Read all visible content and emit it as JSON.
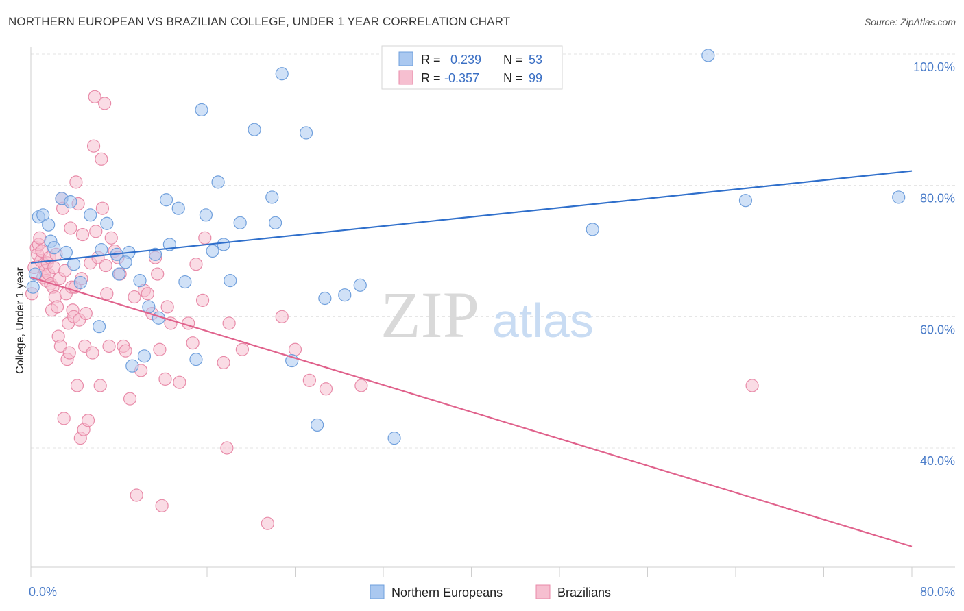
{
  "title": "NORTHERN EUROPEAN VS BRAZILIAN COLLEGE, UNDER 1 YEAR CORRELATION CHART",
  "source": "Source: ZipAtlas.com",
  "watermark": {
    "zip": "ZIP",
    "atlas": "atlas"
  },
  "legend_top": {
    "rows": [
      {
        "r_label": "R =",
        "r_value": "0.239",
        "n_label": "N =",
        "n_value": "53"
      },
      {
        "r_label": "R =",
        "r_value": "-0.357",
        "n_label": "N =",
        "n_value": "99"
      }
    ]
  },
  "legend_bottom": [
    "Northern Europeans",
    "Brazilians"
  ],
  "colors": {
    "blue_fill": "#aac8f0",
    "blue_stroke": "#6f9fdc",
    "blue_line": "#2f6fcb",
    "pink_fill": "#f6bfd0",
    "pink_stroke": "#e88aa8",
    "pink_line": "#e0628c",
    "grid": "#e3e3e3",
    "tick_text": "#4a7cc9"
  },
  "chart_data": {
    "type": "scatter",
    "title": "NORTHERN EUROPEAN VS BRAZILIAN COLLEGE, UNDER 1 YEAR CORRELATION CHART",
    "xlabel": "",
    "ylabel": "College, Under 1 year",
    "xlim": [
      0,
      80
    ],
    "ylim": [
      21,
      101
    ],
    "x_tick_labels": [
      "0.0%",
      "80.0%"
    ],
    "y_ticks": [
      40,
      60,
      80,
      100
    ],
    "y_tick_labels": [
      "40.0%",
      "60.0%",
      "80.0%",
      "100.0%"
    ],
    "grid": true,
    "legend_placement": "top-center",
    "series": [
      {
        "name": "Northern Europeans",
        "r": 0.239,
        "n": 53,
        "trend": {
          "x": [
            0,
            80
          ],
          "y": [
            68.2,
            82.2
          ]
        },
        "points": [
          [
            0.2,
            64.5
          ],
          [
            0.4,
            66.5
          ],
          [
            0.7,
            75.2
          ],
          [
            1.1,
            75.5
          ],
          [
            1.6,
            74.0
          ],
          [
            1.8,
            71.5
          ],
          [
            2.1,
            70.5
          ],
          [
            2.8,
            78.0
          ],
          [
            3.2,
            69.8
          ],
          [
            3.6,
            77.5
          ],
          [
            3.9,
            68.0
          ],
          [
            4.5,
            65.2
          ],
          [
            5.4,
            75.5
          ],
          [
            6.2,
            58.5
          ],
          [
            6.4,
            70.2
          ],
          [
            6.9,
            74.2
          ],
          [
            7.8,
            69.5
          ],
          [
            8.0,
            66.5
          ],
          [
            8.9,
            69.8
          ],
          [
            8.6,
            68.3
          ],
          [
            9.2,
            52.5
          ],
          [
            9.9,
            65.5
          ],
          [
            10.3,
            54.0
          ],
          [
            10.7,
            61.5
          ],
          [
            11.3,
            69.5
          ],
          [
            11.6,
            59.8
          ],
          [
            12.3,
            77.8
          ],
          [
            12.6,
            71.0
          ],
          [
            13.4,
            76.5
          ],
          [
            14.0,
            65.3
          ],
          [
            15.0,
            53.5
          ],
          [
            15.5,
            91.5
          ],
          [
            15.9,
            75.5
          ],
          [
            16.5,
            70.0
          ],
          [
            17.0,
            80.5
          ],
          [
            17.5,
            71.0
          ],
          [
            18.1,
            65.5
          ],
          [
            19.0,
            74.3
          ],
          [
            20.3,
            88.5
          ],
          [
            21.9,
            78.2
          ],
          [
            22.2,
            74.3
          ],
          [
            22.8,
            97.0
          ],
          [
            23.7,
            53.3
          ],
          [
            25.0,
            88.0
          ],
          [
            26.0,
            43.5
          ],
          [
            26.7,
            62.8
          ],
          [
            28.5,
            63.3
          ],
          [
            29.9,
            64.8
          ],
          [
            33.0,
            41.5
          ],
          [
            51.0,
            73.3
          ],
          [
            61.5,
            99.8
          ],
          [
            64.9,
            77.7
          ],
          [
            78.8,
            78.2
          ]
        ]
      },
      {
        "name": "Brazilians",
        "r": -0.357,
        "n": 99,
        "trend": {
          "x": [
            0,
            80
          ],
          "y": [
            66.0,
            25.0
          ]
        },
        "points": [
          [
            0.1,
            63.5
          ],
          [
            0.3,
            67.5
          ],
          [
            0.5,
            70.5
          ],
          [
            0.6,
            69.5
          ],
          [
            0.7,
            71.0
          ],
          [
            0.8,
            72.0
          ],
          [
            0.9,
            68.5
          ],
          [
            1.0,
            70.0
          ],
          [
            1.1,
            66.0
          ],
          [
            1.2,
            68.0
          ],
          [
            1.3,
            67.0
          ],
          [
            1.4,
            65.5
          ],
          [
            1.5,
            68.2
          ],
          [
            1.6,
            66.5
          ],
          [
            1.7,
            69.0
          ],
          [
            1.8,
            65.0
          ],
          [
            1.9,
            61.0
          ],
          [
            2.0,
            64.5
          ],
          [
            2.1,
            67.5
          ],
          [
            2.2,
            63.0
          ],
          [
            2.3,
            69.5
          ],
          [
            2.4,
            61.5
          ],
          [
            2.5,
            57.0
          ],
          [
            2.6,
            65.8
          ],
          [
            2.7,
            55.5
          ],
          [
            2.8,
            78.0
          ],
          [
            2.9,
            76.5
          ],
          [
            3.0,
            44.5
          ],
          [
            3.1,
            67.0
          ],
          [
            3.2,
            63.5
          ],
          [
            3.3,
            53.5
          ],
          [
            3.4,
            59.0
          ],
          [
            3.5,
            54.5
          ],
          [
            3.6,
            73.5
          ],
          [
            3.7,
            64.5
          ],
          [
            3.8,
            61.0
          ],
          [
            3.9,
            60.0
          ],
          [
            4.0,
            64.5
          ],
          [
            4.1,
            80.5
          ],
          [
            4.2,
            49.5
          ],
          [
            4.3,
            77.2
          ],
          [
            4.4,
            59.5
          ],
          [
            4.5,
            41.5
          ],
          [
            4.6,
            65.8
          ],
          [
            4.7,
            72.5
          ],
          [
            4.8,
            42.8
          ],
          [
            4.9,
            55.5
          ],
          [
            5.0,
            60.5
          ],
          [
            5.2,
            44.2
          ],
          [
            5.4,
            68.2
          ],
          [
            5.6,
            54.5
          ],
          [
            5.7,
            86.0
          ],
          [
            5.8,
            93.5
          ],
          [
            5.9,
            73.0
          ],
          [
            6.1,
            69.0
          ],
          [
            6.3,
            49.5
          ],
          [
            6.4,
            84.0
          ],
          [
            6.5,
            76.5
          ],
          [
            6.7,
            92.5
          ],
          [
            6.8,
            67.8
          ],
          [
            6.9,
            63.5
          ],
          [
            7.1,
            55.5
          ],
          [
            7.3,
            72.0
          ],
          [
            7.6,
            70.0
          ],
          [
            7.9,
            69.0
          ],
          [
            8.1,
            66.5
          ],
          [
            8.4,
            55.5
          ],
          [
            8.6,
            54.8
          ],
          [
            9.0,
            47.5
          ],
          [
            9.4,
            63.0
          ],
          [
            9.6,
            32.8
          ],
          [
            10.0,
            51.8
          ],
          [
            10.3,
            64.0
          ],
          [
            10.6,
            63.5
          ],
          [
            11.0,
            60.5
          ],
          [
            11.3,
            69.0
          ],
          [
            11.5,
            66.5
          ],
          [
            11.7,
            55.0
          ],
          [
            11.9,
            31.2
          ],
          [
            12.2,
            50.5
          ],
          [
            12.4,
            61.5
          ],
          [
            12.7,
            59.0
          ],
          [
            13.5,
            50.0
          ],
          [
            14.3,
            59.0
          ],
          [
            14.7,
            56.0
          ],
          [
            15.0,
            68.0
          ],
          [
            15.6,
            62.5
          ],
          [
            15.8,
            72.0
          ],
          [
            17.5,
            53.0
          ],
          [
            17.8,
            40.0
          ],
          [
            18.0,
            59.0
          ],
          [
            19.2,
            55.0
          ],
          [
            21.5,
            28.5
          ],
          [
            22.8,
            60.0
          ],
          [
            24.0,
            55.0
          ],
          [
            25.3,
            50.3
          ],
          [
            26.8,
            49.0
          ],
          [
            30.0,
            49.5
          ],
          [
            65.5,
            49.5
          ]
        ]
      }
    ]
  }
}
